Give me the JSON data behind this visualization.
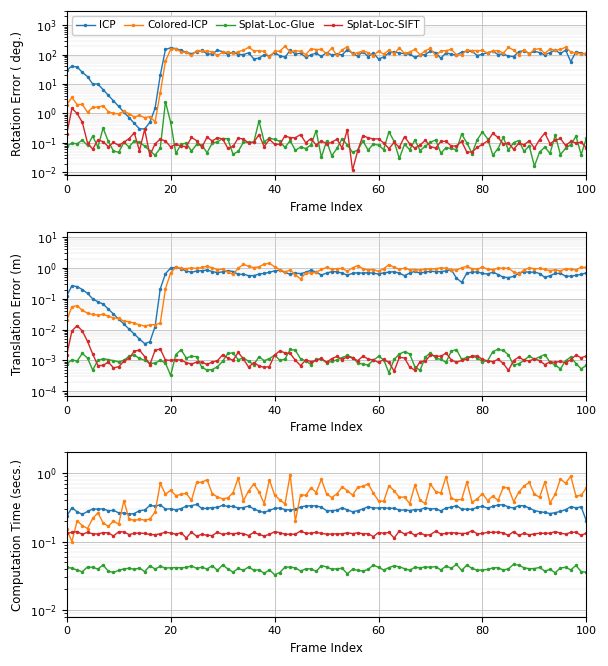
{
  "colors": {
    "ICP": "#1f77b4",
    "Colored-ICP": "#ff7f0e",
    "Splat-Loc-Glue": "#2ca02c",
    "Splat-Loc-SIFT": "#d62728"
  },
  "marker": "o",
  "markersize": 2.5,
  "linewidth": 1.0,
  "subplot1": {
    "ylabel": "Rotation Error ( deg.)",
    "xlabel": "Frame Index",
    "ylim": [
      0.008,
      3000
    ],
    "yticks": [
      0.01,
      0.1,
      1,
      10,
      100,
      1000
    ]
  },
  "subplot2": {
    "ylabel": "Translation Error (m)",
    "xlabel": "Frame Index",
    "ylim": [
      7e-05,
      15
    ],
    "yticks": [
      0.0001,
      0.001,
      0.01,
      0.1,
      1,
      10
    ]
  },
  "subplot3": {
    "ylabel": "Computation Time (secs.)",
    "xlabel": "Frame Index",
    "ylim": [
      0.008,
      2.0
    ],
    "yticks": [
      0.01,
      0.1,
      1
    ]
  },
  "legend_labels": [
    "ICP",
    "Colored-ICP",
    "Splat-Loc-Glue",
    "Splat-Loc-SIFT"
  ],
  "n_frames": 101,
  "xticks": [
    0,
    20,
    40,
    60,
    80,
    100
  ]
}
